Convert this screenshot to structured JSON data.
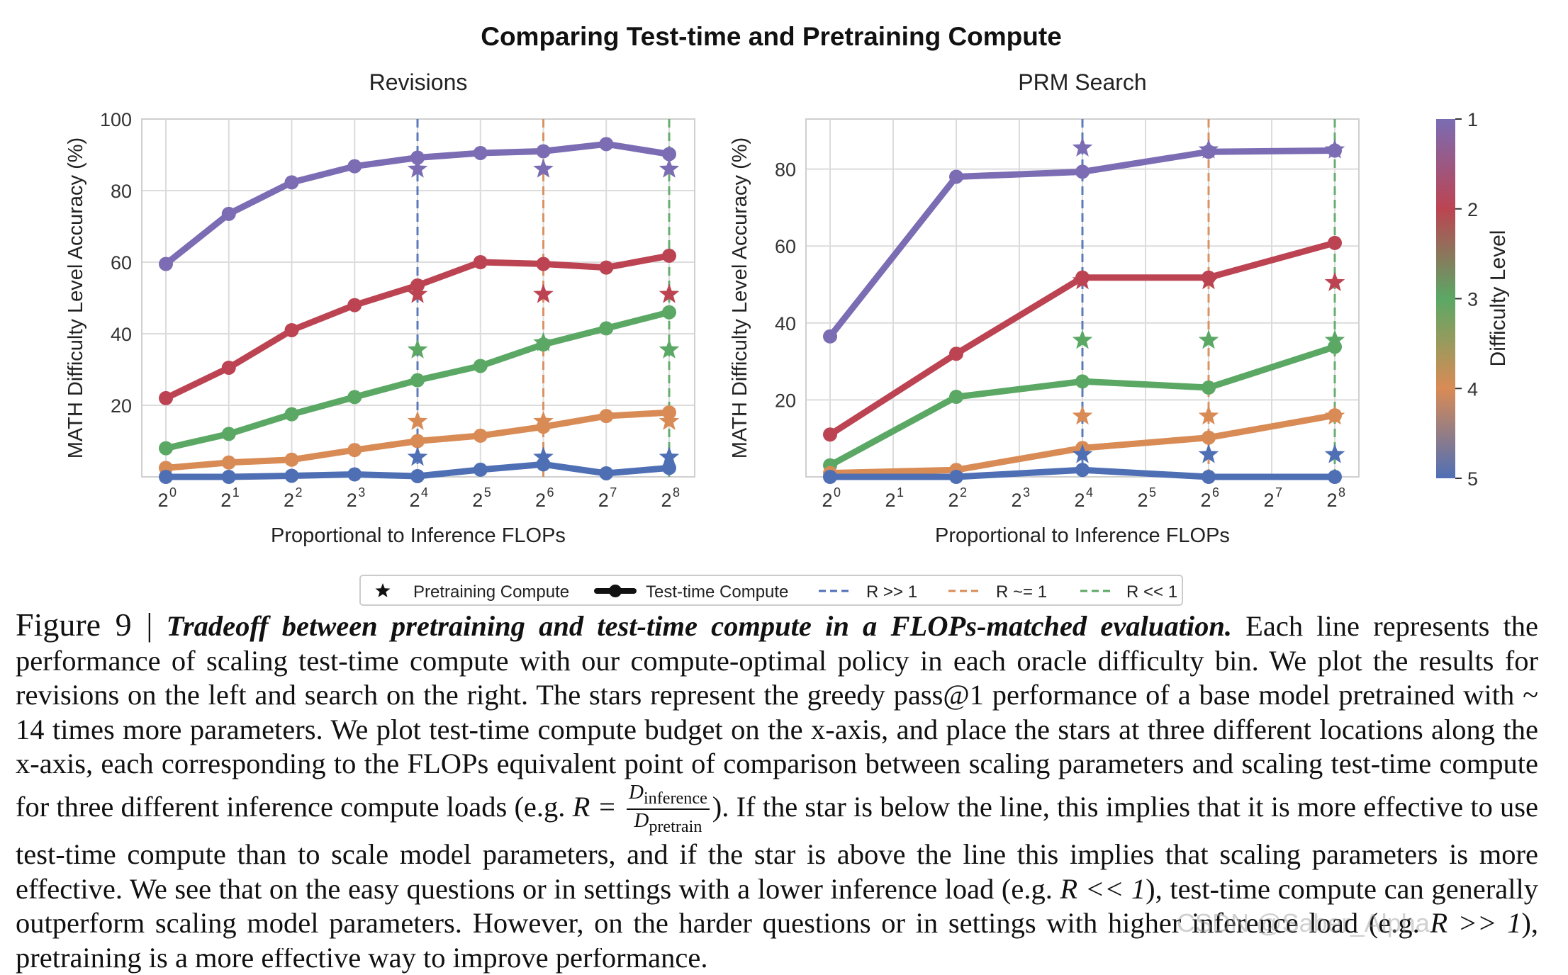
{
  "figure": {
    "suptitle": "Comparing Test-time and Pretraining Compute",
    "colors": {
      "level1": "#7b6cb3",
      "level2": "#bc4452",
      "level3": "#5ba865",
      "level4": "#d98b55",
      "level5": "#4f6fb5",
      "grid": "#dcdcdc",
      "axis": "#cfcfcf"
    },
    "colorbar": {
      "label": "Difficulty Level",
      "ticks": [
        "1",
        "2",
        "3",
        "4",
        "5"
      ]
    },
    "legend": {
      "placement": "bottom-center",
      "items": [
        {
          "label": "Pretraining Compute",
          "icon": "star-marker-icon",
          "color": "#111111"
        },
        {
          "label": "Test-time Compute",
          "icon": "line-with-dot-icon",
          "color": "#111111"
        },
        {
          "label": "R >> 1",
          "icon": "dashed-line-icon",
          "color": "#4f6fb5"
        },
        {
          "label": "R ~= 1",
          "icon": "dashed-line-icon",
          "color": "#d98b55"
        },
        {
          "label": "R << 1",
          "icon": "dashed-line-icon",
          "color": "#5ba865"
        }
      ]
    }
  },
  "chart_data": [
    {
      "type": "line",
      "title": "Revisions",
      "xlabel": "Proportional to Inference FLOPs",
      "ylabel": "MATH Difficulty Level Accuracy (%)",
      "x_scale": "log2",
      "x": [
        1,
        2,
        4,
        8,
        16,
        32,
        64,
        128,
        256
      ],
      "x_tick_labels": [
        [
          "2",
          "0"
        ],
        [
          "2",
          "1"
        ],
        [
          "2",
          "2"
        ],
        [
          "2",
          "3"
        ],
        [
          "2",
          "4"
        ],
        [
          "2",
          "5"
        ],
        [
          "2",
          "6"
        ],
        [
          "2",
          "7"
        ],
        [
          "2",
          "8"
        ]
      ],
      "ylim": [
        0,
        100
      ],
      "y_ticks": [
        20,
        40,
        60,
        80,
        100
      ],
      "grid": true,
      "series": [
        {
          "level": 1,
          "values": [
            59.5,
            73.5,
            82.3,
            86.8,
            89.2,
            90.5,
            91.0,
            93.0,
            90.2
          ]
        },
        {
          "level": 2,
          "values": [
            22.0,
            30.5,
            41.0,
            48.0,
            53.5,
            60.0,
            59.5,
            58.5,
            61.8
          ]
        },
        {
          "level": 3,
          "values": [
            8.0,
            12.0,
            17.5,
            22.3,
            27.0,
            31.0,
            37.0,
            41.5,
            46.0
          ]
        },
        {
          "level": 4,
          "values": [
            2.5,
            4.0,
            4.8,
            7.5,
            10.0,
            11.5,
            14.0,
            17.0,
            18.0
          ]
        },
        {
          "level": 5,
          "values": [
            0.0,
            0.0,
            0.3,
            0.7,
            0.2,
            2.0,
            3.5,
            1.0,
            2.5
          ]
        }
      ],
      "stars": [
        {
          "x": 16,
          "values": [
            86.0,
            51.0,
            35.5,
            15.5,
            5.5
          ]
        },
        {
          "x": 64,
          "values": [
            86.0,
            51.0,
            37.5,
            15.5,
            5.5
          ]
        },
        {
          "x": 256,
          "values": [
            86.0,
            51.0,
            35.5,
            15.5,
            5.5
          ]
        }
      ],
      "ratio_lines": [
        {
          "label": "R >> 1",
          "x": 16,
          "color": "#4f6fb5"
        },
        {
          "label": "R ~= 1",
          "x": 64,
          "color": "#d98b55"
        },
        {
          "label": "R << 1",
          "x": 256,
          "color": "#5ba865"
        }
      ]
    },
    {
      "type": "line",
      "title": "PRM Search",
      "xlabel": "Proportional to Inference FLOPs",
      "ylabel": "MATH Difficulty Level Accuracy (%)",
      "x_scale": "log2",
      "x": [
        1,
        4,
        16,
        64,
        256
      ],
      "x_tick_labels": [
        [
          "2",
          "0"
        ],
        [
          "2",
          "1"
        ],
        [
          "2",
          "2"
        ],
        [
          "2",
          "3"
        ],
        [
          "2",
          "4"
        ],
        [
          "2",
          "5"
        ],
        [
          "2",
          "6"
        ],
        [
          "2",
          "7"
        ],
        [
          "2",
          "8"
        ]
      ],
      "ylim": [
        0,
        93
      ],
      "y_ticks": [
        20,
        40,
        60,
        80
      ],
      "grid": true,
      "series": [
        {
          "level": 1,
          "values": [
            36.5,
            78.0,
            79.3,
            84.5,
            84.8
          ]
        },
        {
          "level": 2,
          "values": [
            11.0,
            32.0,
            51.8,
            51.8,
            60.8
          ]
        },
        {
          "level": 3,
          "values": [
            3.0,
            20.8,
            24.8,
            23.2,
            33.8
          ]
        },
        {
          "level": 4,
          "values": [
            1.0,
            1.8,
            7.5,
            10.2,
            16.0
          ]
        },
        {
          "level": 5,
          "values": [
            0.0,
            0.0,
            1.8,
            0.0,
            0.0
          ]
        }
      ],
      "stars": [
        {
          "x": 16,
          "values": [
            85.5,
            51.0,
            35.5,
            15.8,
            5.8
          ]
        },
        {
          "x": 64,
          "values": [
            85.0,
            51.0,
            35.5,
            15.8,
            5.8
          ]
        },
        {
          "x": 256,
          "values": [
            85.0,
            50.5,
            35.5,
            15.8,
            5.8
          ]
        }
      ],
      "ratio_lines": [
        {
          "label": "R >> 1",
          "x": 16,
          "color": "#4f6fb5"
        },
        {
          "label": "R ~= 1",
          "x": 64,
          "color": "#d98b55"
        },
        {
          "label": "R << 1",
          "x": 256,
          "color": "#5ba865"
        }
      ]
    }
  ],
  "caption": {
    "label": "Figure 9 |",
    "bold_title": "Tradeoff between pretraining and test-time compute in a FLOPs-matched evaluation.",
    "text_1": "Each line represents the performance of scaling test-time compute with our compute-optimal policy in each oracle difficulty bin. We plot the results for revisions on the left and search on the right. The stars represent the greedy pass@1 performance of a base model pretrained with ~ 14 times more parameters. We plot test-time compute budget on the x-axis, and place the stars at three different locations along the x-axis, each corresponding to the FLOPs equivalent point of comparison between scaling parameters and scaling test-time compute for three different inference compute loads (e.g.",
    "formula_lhs": "R =",
    "formula_num": "D",
    "formula_num_sub": "inference",
    "formula_den": "D",
    "formula_den_sub": "pretrain",
    "text_2": "). If the star is below the line, this implies that it is more effective to use test-time compute than to scale model parameters, and if the star is above the line this implies that scaling parameters is more effective. We see that on the easy questions or in settings with a lower inference load (e.g.",
    "formula_2": "R << 1",
    "text_3": "), test-time compute can generally outperform scaling model parameters. However, on the harder questions or in settings with higher inference load (e.g.",
    "formula_3": "R >> 1",
    "text_4": "), pretraining is a more effective way to improve performance."
  },
  "watermark": "CSDN @Saber_Alpha"
}
